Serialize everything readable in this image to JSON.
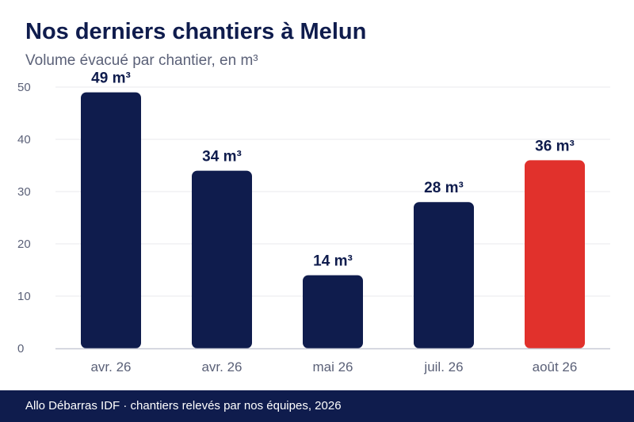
{
  "header": {
    "title": "Nos derniers chantiers à Melun",
    "subtitle": "Volume évacué par chantier, en m³"
  },
  "footer": {
    "text": "Allo Débarras IDF · chantiers relevés par nos équipes, 2026"
  },
  "colors": {
    "bar": "#0f1c4d",
    "highlight": "#e1312c",
    "title": "#0f1c4d",
    "axis_text": "#5b6178",
    "grid": "#e8e9ee",
    "baseline": "#c7c9d6"
  },
  "chart_data": {
    "type": "bar",
    "categories": [
      "avr. 26",
      "avr. 26",
      "mai 26",
      "juil. 26",
      "août 26"
    ],
    "values": [
      49,
      34,
      14,
      28,
      36
    ],
    "data_labels": [
      "49 m³",
      "34 m³",
      "14 m³",
      "28 m³",
      "36 m³"
    ],
    "highlight_index": 4,
    "ylim": [
      0,
      50
    ],
    "yticks": [
      0,
      10,
      20,
      30,
      40,
      50
    ],
    "grid": true,
    "legend": "none"
  }
}
